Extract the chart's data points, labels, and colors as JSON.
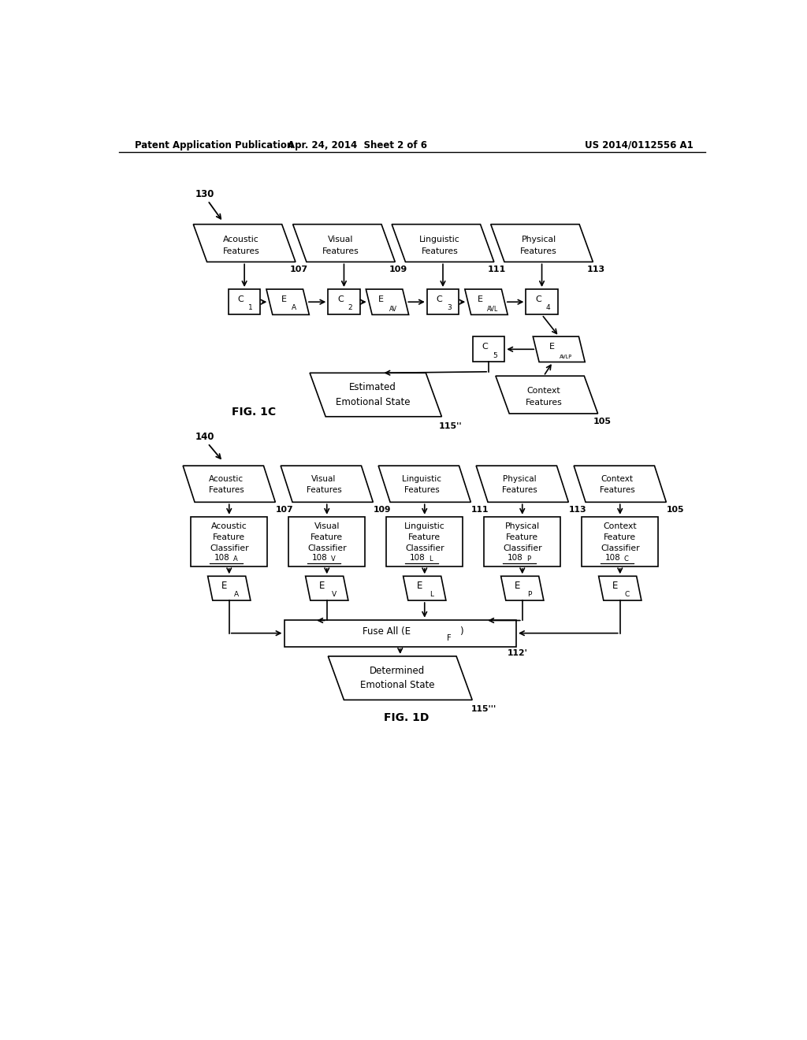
{
  "bg_color": "#ffffff",
  "line_color": "#000000",
  "header_left": "Patent Application Publication",
  "header_center": "Apr. 24, 2014  Sheet 2 of 6",
  "header_right": "US 2014/0112556 A1",
  "fig1c_label": "FIG. 1C",
  "fig1d_label": "FIG. 1D",
  "label_130": "130",
  "label_140": "140"
}
